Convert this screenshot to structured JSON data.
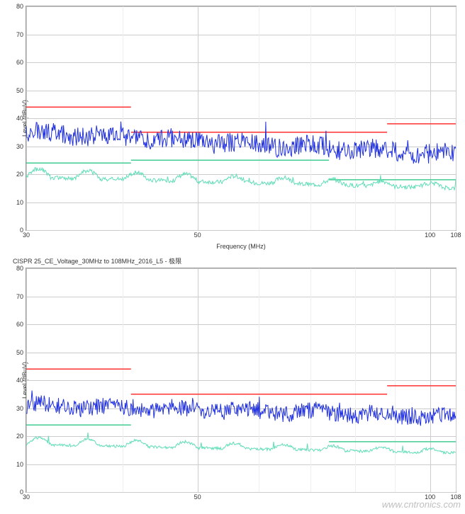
{
  "watermark": "www.cntronics.com",
  "chart_top": {
    "title": "",
    "type": "line",
    "xlabel": "Frequency (MHz)",
    "ylabel": "Level (dBuV)",
    "xscale": "log",
    "xlim": [
      30,
      108
    ],
    "ylim": [
      0,
      80
    ],
    "ytick_step": 10,
    "yticks": [
      0,
      10,
      20,
      30,
      40,
      50,
      60,
      70,
      80
    ],
    "xticks": [
      30,
      50,
      100,
      108
    ],
    "grid_color": "#cccccc",
    "background_color": "#ffffff",
    "plot_border_color": "#999999",
    "label_fontsize": 9,
    "tick_fontsize": 9,
    "red_limit": {
      "color": "#ff3030",
      "line_width": 1.5,
      "segments": [
        {
          "x1": 30,
          "y": 44,
          "x2": 41
        },
        {
          "x1": 41,
          "y": 35,
          "x2": 88
        },
        {
          "x1": 88,
          "y": 38,
          "x2": 108
        }
      ]
    },
    "green_limit": {
      "color": "#40cc90",
      "line_width": 1.5,
      "segments": [
        {
          "x1": 30,
          "y": 24,
          "x2": 41
        },
        {
          "x1": 41,
          "y": 25,
          "x2": 74
        },
        {
          "x1": 74,
          "y": 18,
          "x2": 108
        }
      ]
    },
    "blue_trace": {
      "color": "#2030e0",
      "line_width": 1,
      "base_level": 35,
      "end_level": 27,
      "noise_amplitude": 3.5,
      "spike_amplitude": 8
    },
    "teal_trace": {
      "color": "#60ddb8",
      "line_width": 1,
      "base_level": 19,
      "end_level": 15,
      "noise_amplitude": 1.5,
      "hump_amplitude": 3
    }
  },
  "chart_bottom": {
    "title": "CISPR 25_CE_Voltage_30MHz to 108MHz_2016_L5 - 极限",
    "type": "line",
    "xlabel": "",
    "ylabel": "Level (dBuV)",
    "xscale": "log",
    "xlim": [
      30,
      108
    ],
    "ylim": [
      0,
      80
    ],
    "ytick_step": 10,
    "yticks": [
      0,
      10,
      20,
      30,
      40,
      50,
      60,
      70,
      80
    ],
    "xticks": [
      30,
      50,
      100,
      108
    ],
    "grid_color": "#cccccc",
    "background_color": "#ffffff",
    "plot_border_color": "#999999",
    "label_fontsize": 9,
    "tick_fontsize": 9,
    "red_limit": {
      "color": "#ff3030",
      "line_width": 1.5,
      "segments": [
        {
          "x1": 30,
          "y": 44,
          "x2": 41
        },
        {
          "x1": 41,
          "y": 35,
          "x2": 88
        },
        {
          "x1": 88,
          "y": 38,
          "x2": 108
        }
      ]
    },
    "green_limit": {
      "color": "#40cc90",
      "line_width": 1.5,
      "segments": [
        {
          "x1": 30,
          "y": 24,
          "x2": 41
        },
        {
          "x1": 74,
          "y": 18,
          "x2": 108
        }
      ]
    },
    "blue_trace": {
      "color": "#2030e0",
      "line_width": 1,
      "base_level": 31,
      "end_level": 27,
      "noise_amplitude": 3,
      "spike_amplitude": 4
    },
    "teal_trace": {
      "color": "#60ddb8",
      "line_width": 1,
      "base_level": 17,
      "end_level": 14,
      "noise_amplitude": 1,
      "hump_amplitude": 2.5
    }
  }
}
